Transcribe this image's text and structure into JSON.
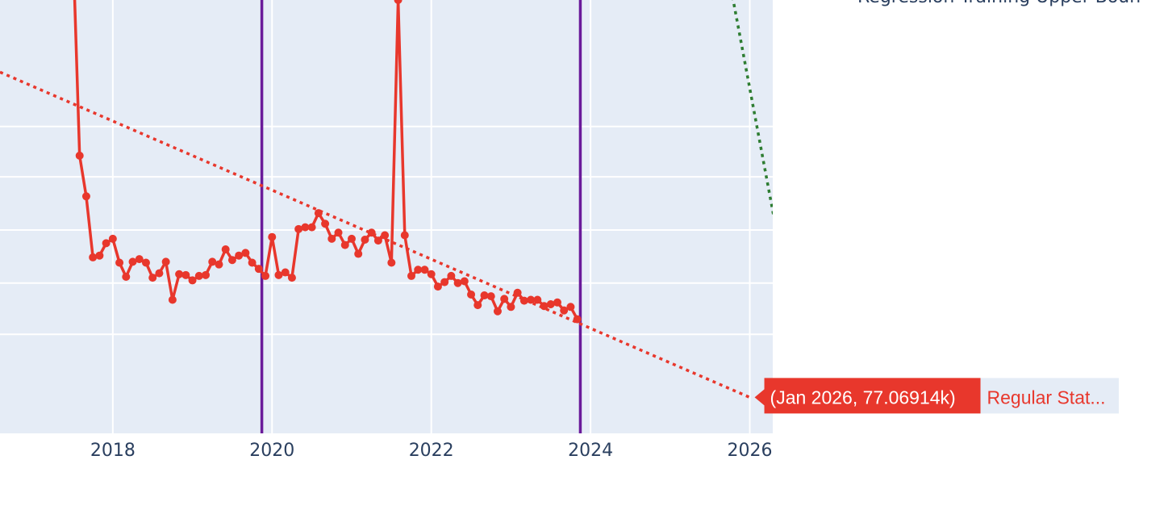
{
  "chart_data": {
    "type": "line",
    "x_axis": {
      "type": "date",
      "tick_labels": [
        "2018",
        "2020",
        "2022",
        "2024",
        "2026"
      ],
      "range": [
        "2016-08-01",
        "2026-04-15"
      ]
    },
    "y_axis": {
      "tick_labels": [],
      "range": [
        73,
        122
      ],
      "gridlines": [
        84.2,
        90.0,
        96.0,
        102.0,
        107.7
      ]
    },
    "grid": true,
    "plot_background": "#e5ecf6",
    "series": [
      {
        "role": "actual",
        "color": "#e8372c",
        "style": "line+markers",
        "x": [
          "2017-07-01",
          "2017-08-01",
          "2017-09-01",
          "2017-10-01",
          "2017-11-01",
          "2017-12-01",
          "2018-01-01",
          "2018-02-01",
          "2018-03-01",
          "2018-04-01",
          "2018-05-01",
          "2018-06-01",
          "2018-07-01",
          "2018-08-01",
          "2018-09-01",
          "2018-10-01",
          "2018-11-01",
          "2018-12-01",
          "2019-01-01",
          "2019-02-01",
          "2019-03-01",
          "2019-04-01",
          "2019-05-01",
          "2019-06-01",
          "2019-07-01",
          "2019-08-01",
          "2019-09-01",
          "2019-10-01",
          "2019-11-01",
          "2019-12-01",
          "2020-01-01",
          "2020-02-01",
          "2020-03-01",
          "2020-04-01",
          "2020-05-01",
          "2020-06-01",
          "2020-07-01",
          "2020-08-01",
          "2020-09-01",
          "2020-10-01",
          "2020-11-01",
          "2020-12-01",
          "2021-01-01",
          "2021-02-01",
          "2021-03-01",
          "2021-04-01",
          "2021-05-01",
          "2021-06-01",
          "2021-07-01",
          "2021-08-01",
          "2021-09-01",
          "2021-10-01",
          "2021-11-01",
          "2021-12-01",
          "2022-01-01",
          "2022-02-01",
          "2022-03-01",
          "2022-04-01",
          "2022-05-01",
          "2022-06-01",
          "2022-07-01",
          "2022-08-01",
          "2022-09-01",
          "2022-10-01",
          "2022-11-01",
          "2022-12-01",
          "2023-01-01",
          "2023-02-01",
          "2023-03-01",
          "2023-04-01",
          "2023-05-01",
          "2023-06-01",
          "2023-07-01",
          "2023-08-01",
          "2023-09-01",
          "2023-10-01",
          "2023-11-01"
        ],
        "y": [
          128.0,
          104.4,
          99.8,
          92.9,
          93.1,
          94.5,
          95.0,
          92.3,
          90.7,
          92.4,
          92.7,
          92.3,
          90.6,
          91.1,
          92.4,
          88.1,
          91.0,
          90.9,
          90.3,
          90.8,
          90.9,
          92.4,
          92.1,
          93.8,
          92.6,
          93.1,
          93.4,
          92.3,
          91.6,
          90.8,
          95.2,
          90.9,
          91.2,
          90.6,
          96.1,
          96.3,
          96.3,
          97.9,
          96.7,
          95.0,
          95.7,
          94.3,
          95.0,
          93.3,
          94.9,
          95.7,
          94.8,
          95.4,
          92.3,
          122.0,
          95.4,
          90.8,
          91.5,
          91.5,
          91.0,
          89.6,
          90.1,
          90.8,
          90.0,
          90.2,
          88.7,
          87.5,
          88.6,
          88.5,
          86.8,
          88.2,
          87.3,
          88.9,
          88.0,
          88.1,
          88.1,
          87.4,
          87.6,
          87.8,
          86.9,
          87.3,
          85.9
        ]
      },
      {
        "role": "regression",
        "color": "#e8372c",
        "style": "dotted",
        "x": [
          "2016-06-01",
          "2026-01-01"
        ],
        "y": [
          114.5,
          77.06914
        ]
      },
      {
        "role": "upper-bound",
        "color": "#2e7d32",
        "style": "dotted",
        "x": [
          "2025-09-01",
          "2026-05-01"
        ],
        "y": [
          128.0,
          96.0
        ]
      }
    ],
    "vertical_lines": [
      {
        "x": "2019-11-15",
        "color": "#6a1b9a"
      },
      {
        "x": "2023-11-15",
        "color": "#6a1b9a"
      }
    ],
    "legend": {
      "placement": "right",
      "visible_entry": "Regression Training Upper Boun"
    },
    "hover": {
      "x": "2026-01-01",
      "y": 77.06914,
      "label": "(Jan 2026, 77.06914k)",
      "series_name": "Regular Stat...",
      "color": "#e8372c"
    }
  }
}
